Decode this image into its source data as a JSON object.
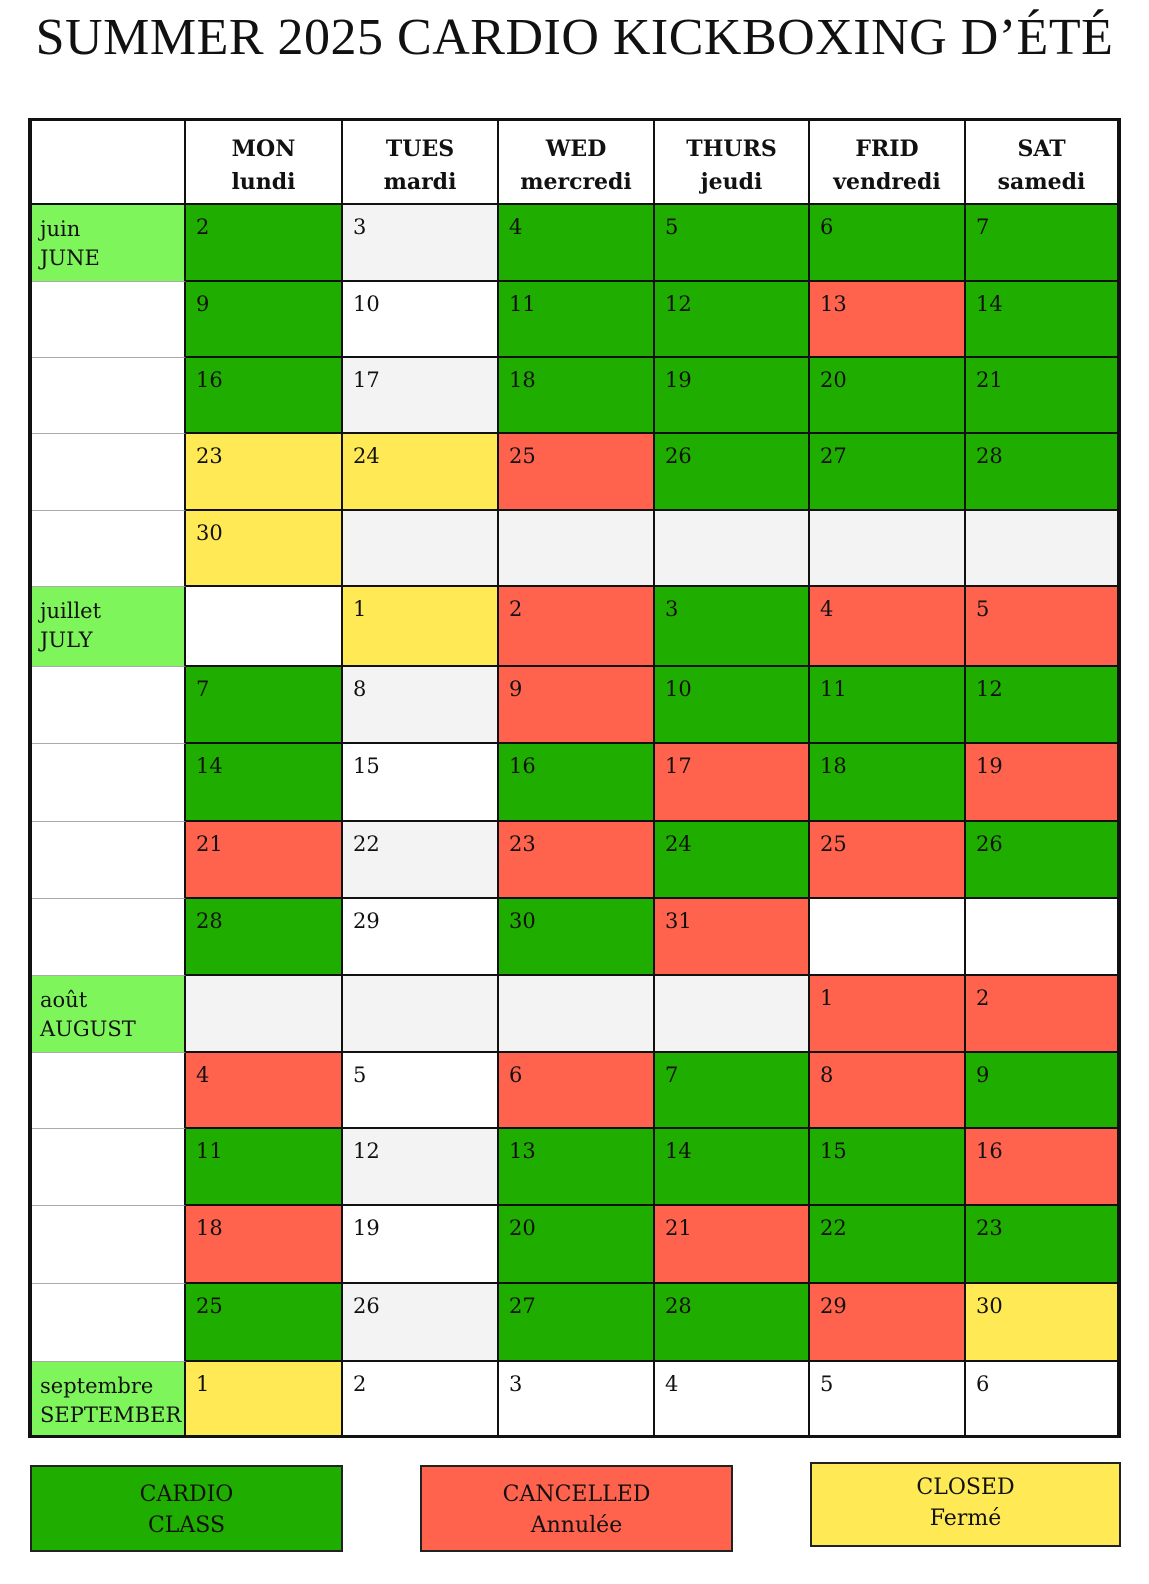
{
  "title": "SUMMER 2025 CARDIO KICKBOXING D’ÉTÉ",
  "colors": {
    "green": "#1fad00",
    "red": "#ff624d",
    "yellow": "#ffea55",
    "grey": "#f3f3f3",
    "white": "#ffffff",
    "month_label": "#7ef55a"
  },
  "days": [
    {
      "en": "MON",
      "fr": "lundi"
    },
    {
      "en": "TUES",
      "fr": "mardi"
    },
    {
      "en": "WED",
      "fr": "mercredi"
    },
    {
      "en": "THURS",
      "fr": "jeudi"
    },
    {
      "en": "FRID",
      "fr": "vendredi"
    },
    {
      "en": "SAT",
      "fr": "samedi"
    }
  ],
  "weeks": [
    {
      "month_fr": "juin",
      "month_en": "JUNE",
      "cells": [
        [
          "2",
          "green"
        ],
        [
          "3",
          "grey"
        ],
        [
          "4",
          "green"
        ],
        [
          "5",
          "green"
        ],
        [
          "6",
          "green"
        ],
        [
          "7",
          "green"
        ]
      ]
    },
    {
      "cells": [
        [
          "9",
          "green"
        ],
        [
          "10",
          "white"
        ],
        [
          "11",
          "green"
        ],
        [
          "12",
          "green"
        ],
        [
          "13",
          "red"
        ],
        [
          "14",
          "green"
        ]
      ]
    },
    {
      "cells": [
        [
          "16",
          "green"
        ],
        [
          "17",
          "grey"
        ],
        [
          "18",
          "green"
        ],
        [
          "19",
          "green"
        ],
        [
          "20",
          "green"
        ],
        [
          "21",
          "green"
        ]
      ]
    },
    {
      "cells": [
        [
          "23",
          "yellow"
        ],
        [
          "24",
          "yellow"
        ],
        [
          "25",
          "red"
        ],
        [
          "26",
          "green"
        ],
        [
          "27",
          "green"
        ],
        [
          "28",
          "green"
        ]
      ]
    },
    {
      "cells": [
        [
          "30",
          "yellow"
        ],
        [
          "",
          "grey"
        ],
        [
          "",
          "grey"
        ],
        [
          "",
          "grey"
        ],
        [
          "",
          "grey"
        ],
        [
          "",
          "grey"
        ]
      ]
    },
    {
      "month_fr": "juillet",
      "month_en": "JULY",
      "cells": [
        [
          "",
          "white"
        ],
        [
          "1",
          "yellow"
        ],
        [
          "2",
          "red"
        ],
        [
          "3",
          "green"
        ],
        [
          "4",
          "red"
        ],
        [
          "5",
          "red"
        ]
      ]
    },
    {
      "cells": [
        [
          "7",
          "green"
        ],
        [
          "8",
          "grey"
        ],
        [
          "9",
          "red"
        ],
        [
          "10",
          "green"
        ],
        [
          "11",
          "green"
        ],
        [
          "12",
          "green"
        ]
      ]
    },
    {
      "cells": [
        [
          "14",
          "green"
        ],
        [
          "15",
          "white"
        ],
        [
          "16",
          "green"
        ],
        [
          "17",
          "red"
        ],
        [
          "18",
          "green"
        ],
        [
          "19",
          "red"
        ]
      ]
    },
    {
      "cells": [
        [
          "21",
          "red"
        ],
        [
          "22",
          "grey"
        ],
        [
          "23",
          "red"
        ],
        [
          "24",
          "green"
        ],
        [
          "25",
          "red"
        ],
        [
          "26",
          "green"
        ]
      ]
    },
    {
      "cells": [
        [
          "28",
          "green"
        ],
        [
          "29",
          "white"
        ],
        [
          "30",
          "green"
        ],
        [
          "31",
          "red"
        ],
        [
          "",
          "white"
        ],
        [
          "",
          "white"
        ]
      ]
    },
    {
      "month_fr": "août",
      "month_en": "AUGUST",
      "cells": [
        [
          "",
          "grey"
        ],
        [
          "",
          "grey"
        ],
        [
          "",
          "grey"
        ],
        [
          "",
          "grey"
        ],
        [
          "1",
          "red"
        ],
        [
          "2",
          "red"
        ]
      ]
    },
    {
      "cells": [
        [
          "4",
          "red"
        ],
        [
          "5",
          "white"
        ],
        [
          "6",
          "red"
        ],
        [
          "7",
          "green"
        ],
        [
          "8",
          "red"
        ],
        [
          "9",
          "green"
        ]
      ]
    },
    {
      "cells": [
        [
          "11",
          "green"
        ],
        [
          "12",
          "grey"
        ],
        [
          "13",
          "green"
        ],
        [
          "14",
          "green"
        ],
        [
          "15",
          "green"
        ],
        [
          "16",
          "red"
        ]
      ]
    },
    {
      "cells": [
        [
          "18",
          "red"
        ],
        [
          "19",
          "white"
        ],
        [
          "20",
          "green"
        ],
        [
          "21",
          "red"
        ],
        [
          "22",
          "green"
        ],
        [
          "23",
          "green"
        ]
      ]
    },
    {
      "cells": [
        [
          "25",
          "green"
        ],
        [
          "26",
          "grey"
        ],
        [
          "27",
          "green"
        ],
        [
          "28",
          "green"
        ],
        [
          "29",
          "red"
        ],
        [
          "30",
          "yellow"
        ]
      ]
    },
    {
      "month_fr": "septembre",
      "month_en": "SEPTEMBER",
      "cells": [
        [
          "1",
          "yellow"
        ],
        [
          "2",
          "white"
        ],
        [
          "3",
          "white"
        ],
        [
          "4",
          "white"
        ],
        [
          "5",
          "white"
        ],
        [
          "6",
          "white"
        ]
      ]
    }
  ],
  "legend": [
    {
      "line1": "CARDIO",
      "line2": "CLASS",
      "color": "green"
    },
    {
      "line1": "CANCELLED",
      "line2": "Annulée",
      "color": "red"
    },
    {
      "line1": "CLOSED",
      "line2": "Fermé",
      "color": "yellow"
    }
  ]
}
